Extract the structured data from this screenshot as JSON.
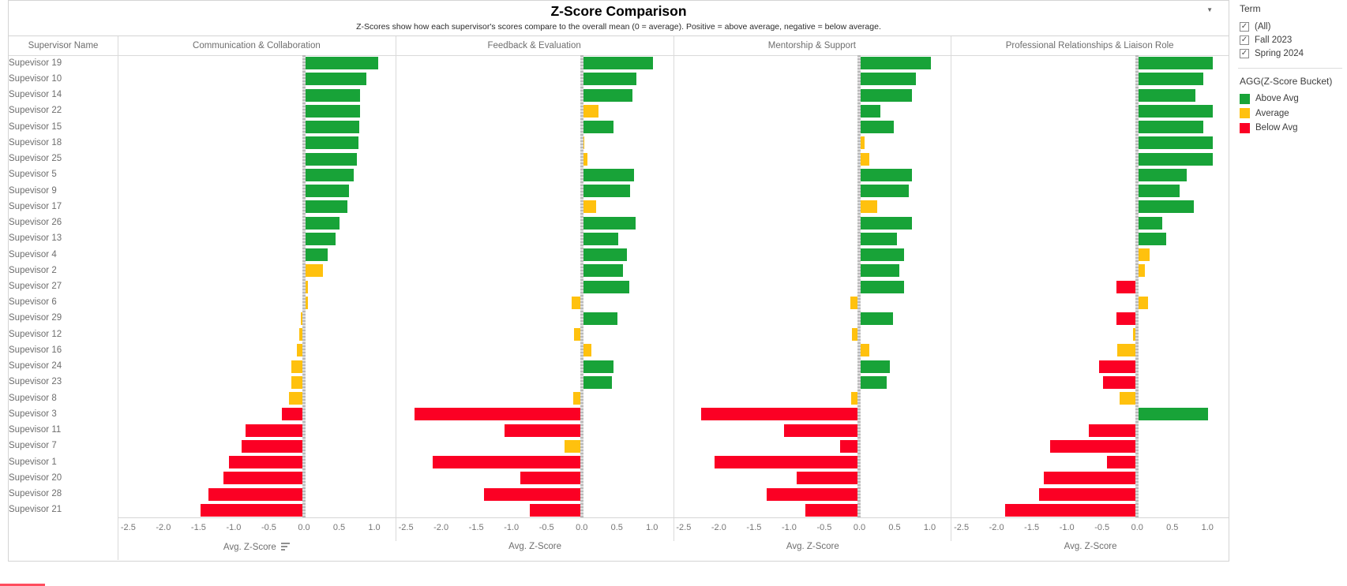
{
  "title_block": {
    "title": "Z-Score Comparison",
    "subtitle": "Z-Scores show how each supervisor's scores compare to the overall mean (0 = average). Positive = above average, negative = below average."
  },
  "icons": {
    "dropdown_caret": "▼",
    "checkbox_check": "✓"
  },
  "chart_data": {
    "type": "bar",
    "orientation": "horizontal",
    "row_header": "Supervisor Name",
    "xlabel": "Avg. Z-Score",
    "x_ticks": [
      "-2.5",
      "-2.0",
      "-1.5",
      "-1.0",
      "-0.5",
      "0.0",
      "0.5",
      "1.0"
    ],
    "xlim": [
      -2.65,
      1.3
    ],
    "grid": false,
    "legend_position": "right",
    "categories": [
      "Supevisor 19",
      "Supevisor 10",
      "Supevisor 14",
      "Supevisor 22",
      "Supevisor 15",
      "Supevisor 18",
      "Supevisor 25",
      "Supevisor 5",
      "Supevisor 9",
      "Supevisor 17",
      "Supevisor 26",
      "Supevisor 13",
      "Supevisor 4",
      "Supevisor 2",
      "Supevisor 27",
      "Supevisor 6",
      "Supevisor 29",
      "Supevisor 12",
      "Supevisor 16",
      "Supevisor 24",
      "Supevisor 23",
      "Supevisor 8",
      "Supevisor 3",
      "Supevisor 11",
      "Supevisor 7",
      "Supevisor 1",
      "Supevisor 20",
      "Supevisor 28",
      "Supevisor 21"
    ],
    "bucket_colors": {
      "above": "#18a338",
      "average": "#ffc10e",
      "below": "#fb0024"
    },
    "series": [
      {
        "name": "Communication & Collaboration",
        "values": [
          1.03,
          0.87,
          0.78,
          0.78,
          0.76,
          0.75,
          0.73,
          0.69,
          0.62,
          0.6,
          0.48,
          0.43,
          0.31,
          0.25,
          0.03,
          0.03,
          -0.02,
          -0.05,
          -0.08,
          -0.16,
          -0.16,
          -0.19,
          -0.29,
          -0.81,
          -0.87,
          -1.04,
          -1.12,
          -1.34,
          -1.45
        ],
        "buckets": [
          "above",
          "above",
          "above",
          "above",
          "above",
          "above",
          "above",
          "above",
          "above",
          "above",
          "above",
          "above",
          "above",
          "average",
          "average",
          "average",
          "average",
          "average",
          "average",
          "average",
          "average",
          "average",
          "below",
          "below",
          "below",
          "below",
          "below",
          "below",
          "below"
        ]
      },
      {
        "name": "Feedback & Evaluation",
        "values": [
          0.99,
          0.76,
          0.7,
          0.22,
          0.43,
          0.01,
          0.06,
          0.72,
          0.67,
          0.18,
          0.74,
          0.5,
          0.62,
          0.57,
          0.65,
          -0.12,
          0.49,
          -0.09,
          0.12,
          0.43,
          0.41,
          -0.1,
          -2.35,
          -1.07,
          -0.22,
          -2.1,
          -0.85,
          -1.37,
          -0.72
        ],
        "buckets": [
          "above",
          "above",
          "above",
          "average",
          "above",
          "average",
          "average",
          "above",
          "above",
          "average",
          "above",
          "above",
          "above",
          "above",
          "above",
          "average",
          "above",
          "average",
          "average",
          "above",
          "above",
          "average",
          "below",
          "below",
          "average",
          "below",
          "below",
          "below",
          "below"
        ]
      },
      {
        "name": "Mentorship & Support",
        "values": [
          0.99,
          0.78,
          0.72,
          0.27,
          0.47,
          0.05,
          0.12,
          0.72,
          0.68,
          0.23,
          0.73,
          0.51,
          0.61,
          0.55,
          0.61,
          -0.11,
          0.45,
          -0.08,
          0.12,
          0.41,
          0.36,
          -0.1,
          -2.23,
          -1.05,
          -0.25,
          -2.04,
          -0.87,
          -1.3,
          -0.75
        ],
        "buckets": [
          "above",
          "above",
          "above",
          "above",
          "above",
          "average",
          "average",
          "above",
          "above",
          "average",
          "above",
          "above",
          "above",
          "above",
          "above",
          "average",
          "above",
          "average",
          "average",
          "above",
          "above",
          "average",
          "below",
          "below",
          "below",
          "below",
          "below",
          "below",
          "below"
        ]
      },
      {
        "name": "Professional Relationships & Liaison Role",
        "values": [
          1.05,
          0.92,
          0.81,
          1.05,
          0.92,
          1.05,
          1.05,
          0.68,
          0.58,
          0.78,
          0.33,
          0.39,
          0.15,
          0.09,
          -0.27,
          0.13,
          -0.27,
          -0.04,
          -0.26,
          -0.52,
          -0.46,
          -0.23,
          0.99,
          -0.67,
          -1.21,
          -0.41,
          -1.31,
          -1.37,
          -1.85
        ],
        "buckets": [
          "above",
          "above",
          "above",
          "above",
          "above",
          "above",
          "above",
          "above",
          "above",
          "above",
          "above",
          "above",
          "average",
          "average",
          "below",
          "average",
          "below",
          "average",
          "average",
          "below",
          "below",
          "average",
          "above",
          "below",
          "below",
          "below",
          "below",
          "below",
          "below"
        ]
      }
    ]
  },
  "term_filter": {
    "title": "Term",
    "options": [
      {
        "label": "(All)",
        "checked": true
      },
      {
        "label": "Fall 2023",
        "checked": true
      },
      {
        "label": "Spring 2024",
        "checked": true
      }
    ]
  },
  "legend": {
    "title": "AGG(Z-Score Bucket)",
    "items": [
      {
        "label": "Above Avg",
        "bucket": "above"
      },
      {
        "label": "Average",
        "bucket": "average"
      },
      {
        "label": "Below Avg",
        "bucket": "below"
      }
    ]
  }
}
